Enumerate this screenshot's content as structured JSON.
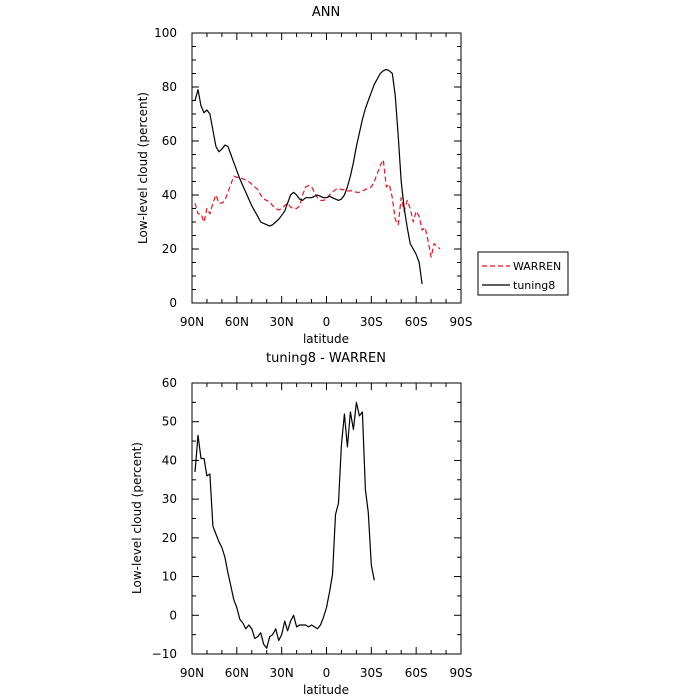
{
  "chart_data": [
    {
      "type": "line",
      "title": "ANN",
      "xlabel": "latitude",
      "ylabel": "Low-level cloud (percent)",
      "xlim": [
        90,
        -90
      ],
      "ylim": [
        0,
        100
      ],
      "xticks": [
        90,
        60,
        30,
        0,
        -30,
        -60,
        -90
      ],
      "xtick_labels": [
        "90N",
        "60N",
        "30N",
        "0",
        "30S",
        "60S",
        "90S"
      ],
      "yticks": [
        0,
        20,
        40,
        60,
        80,
        100
      ],
      "ytick_labels": [
        "0",
        "20",
        "40",
        "60",
        "80",
        "100"
      ],
      "legend": "right",
      "series": [
        {
          "name": "WARREN",
          "color": "#e8141e",
          "dash": "dashed",
          "points": [
            [
              88,
              37
            ],
            [
              86,
              33
            ],
            [
              84,
              33
            ],
            [
              82,
              30
            ],
            [
              80,
              35
            ],
            [
              78,
              33
            ],
            [
              76,
              37
            ],
            [
              74,
              40
            ],
            [
              72,
              37
            ],
            [
              70,
              37
            ],
            [
              68,
              38
            ],
            [
              66,
              41
            ],
            [
              64,
              44
            ],
            [
              62,
              47
            ],
            [
              60,
              46.5
            ],
            [
              58,
              46.5
            ],
            [
              56,
              46
            ],
            [
              54,
              45.5
            ],
            [
              52,
              45
            ],
            [
              50,
              44
            ],
            [
              48,
              43
            ],
            [
              46,
              42
            ],
            [
              44,
              40
            ],
            [
              42,
              38.5
            ],
            [
              40,
              38
            ],
            [
              38,
              37.5
            ],
            [
              36,
              36
            ],
            [
              34,
              35
            ],
            [
              32,
              34.5
            ],
            [
              30,
              35
            ],
            [
              28,
              36
            ],
            [
              26,
              37
            ],
            [
              24,
              35.5
            ],
            [
              22,
              35
            ],
            [
              20,
              35
            ],
            [
              18,
              36
            ],
            [
              16,
              40
            ],
            [
              14,
              43
            ],
            [
              12,
              43.5
            ],
            [
              10,
              43
            ],
            [
              8,
              41
            ],
            [
              6,
              39
            ],
            [
              4,
              38
            ],
            [
              2,
              38
            ],
            [
              0,
              38.5
            ],
            [
              -2,
              40
            ],
            [
              -4,
              41
            ],
            [
              -6,
              42
            ],
            [
              -8,
              42.5
            ],
            [
              -10,
              42
            ],
            [
              -12,
              42
            ],
            [
              -14,
              41.5
            ],
            [
              -16,
              41.5
            ],
            [
              -18,
              41.5
            ],
            [
              -20,
              41
            ],
            [
              -22,
              41
            ],
            [
              -24,
              41.5
            ],
            [
              -26,
              42
            ],
            [
              -28,
              42.5
            ],
            [
              -30,
              43
            ],
            [
              -32,
              45
            ],
            [
              -34,
              48
            ],
            [
              -36,
              51
            ],
            [
              -38,
              53
            ],
            [
              -40,
              43
            ],
            [
              -42,
              44
            ],
            [
              -44,
              39
            ],
            [
              -46,
              31
            ],
            [
              -48,
              29
            ],
            [
              -50,
              39
            ],
            [
              -52,
              34
            ],
            [
              -54,
              38
            ],
            [
              -56,
              35
            ],
            [
              -58,
              30
            ],
            [
              -60,
              34
            ],
            [
              -62,
              32
            ],
            [
              -64,
              27
            ],
            [
              -66,
              28
            ],
            [
              -68,
              23
            ],
            [
              -70,
              17
            ],
            [
              -72,
              22
            ],
            [
              -74,
              21
            ],
            [
              -76,
              20
            ]
          ]
        },
        {
          "name": "tuning8",
          "color": "#000000",
          "dash": "solid",
          "points": [
            [
              88,
              75
            ],
            [
              86,
              79
            ],
            [
              84,
              73
            ],
            [
              82,
              70.5
            ],
            [
              80,
              71.5
            ],
            [
              78,
              70
            ],
            [
              76,
              64
            ],
            [
              74,
              58
            ],
            [
              72,
              56
            ],
            [
              70,
              57
            ],
            [
              68,
              58.5
            ],
            [
              66,
              58
            ],
            [
              64,
              55
            ],
            [
              62,
              52
            ],
            [
              60,
              49
            ],
            [
              58,
              46
            ],
            [
              56,
              43.5
            ],
            [
              54,
              41
            ],
            [
              52,
              38.5
            ],
            [
              50,
              36
            ],
            [
              48,
              34
            ],
            [
              46,
              32
            ],
            [
              44,
              30
            ],
            [
              42,
              29.5
            ],
            [
              40,
              29
            ],
            [
              38,
              28.5
            ],
            [
              36,
              29
            ],
            [
              34,
              30
            ],
            [
              32,
              31
            ],
            [
              30,
              32.5
            ],
            [
              28,
              34
            ],
            [
              26,
              37
            ],
            [
              24,
              40
            ],
            [
              22,
              41
            ],
            [
              20,
              40
            ],
            [
              18,
              38.5
            ],
            [
              16,
              38
            ],
            [
              14,
              39
            ],
            [
              12,
              39
            ],
            [
              10,
              39
            ],
            [
              8,
              39.5
            ],
            [
              6,
              40
            ],
            [
              4,
              39.5
            ],
            [
              2,
              39
            ],
            [
              0,
              39
            ],
            [
              -2,
              39.5
            ],
            [
              -4,
              39
            ],
            [
              -6,
              38.5
            ],
            [
              -8,
              38
            ],
            [
              -10,
              38.5
            ],
            [
              -12,
              40
            ],
            [
              -14,
              43
            ],
            [
              -16,
              47
            ],
            [
              -18,
              52
            ],
            [
              -20,
              58
            ],
            [
              -22,
              63
            ],
            [
              -24,
              68
            ],
            [
              -26,
              72
            ],
            [
              -28,
              75
            ],
            [
              -30,
              78
            ],
            [
              -32,
              81
            ],
            [
              -34,
              83
            ],
            [
              -36,
              85
            ],
            [
              -38,
              86
            ],
            [
              -40,
              86.5
            ],
            [
              -42,
              86
            ],
            [
              -44,
              85
            ],
            [
              -46,
              77
            ],
            [
              -48,
              62
            ],
            [
              -50,
              45
            ],
            [
              -52,
              35
            ],
            [
              -54,
              28
            ],
            [
              -56,
              22
            ],
            [
              -58,
              20
            ],
            [
              -60,
              18
            ],
            [
              -62,
              15
            ],
            [
              -64,
              7
            ]
          ]
        }
      ]
    },
    {
      "type": "line",
      "title": "tuning8 - WARREN",
      "xlabel": "latitude",
      "ylabel": "Low-level cloud (percent)",
      "xlim": [
        90,
        -90
      ],
      "ylim": [
        -10,
        60
      ],
      "xticks": [
        90,
        60,
        30,
        0,
        -30,
        -60,
        -90
      ],
      "xtick_labels": [
        "90N",
        "60N",
        "30N",
        "0",
        "30S",
        "60S",
        "90S"
      ],
      "yticks": [
        -10,
        0,
        10,
        20,
        30,
        40,
        50,
        60
      ],
      "ytick_labels": [
        "−10",
        "0",
        "10",
        "20",
        "30",
        "40",
        "50",
        "60"
      ],
      "series": [
        {
          "color": "#000000",
          "dash": "solid",
          "points": [
            [
              88,
              37
            ],
            [
              86,
              46.5
            ],
            [
              84,
              40.5
            ],
            [
              82,
              40.5
            ],
            [
              80,
              36
            ],
            [
              78,
              36.5
            ],
            [
              76,
              23
            ],
            [
              74,
              21
            ],
            [
              72,
              19
            ],
            [
              70,
              17.5
            ],
            [
              68,
              15
            ],
            [
              66,
              11
            ],
            [
              64,
              7.5
            ],
            [
              62,
              4
            ],
            [
              60,
              2
            ],
            [
              58,
              -1
            ],
            [
              56,
              -2
            ],
            [
              54,
              -3.5
            ],
            [
              52,
              -2.5
            ],
            [
              50,
              -3.5
            ],
            [
              48,
              -6
            ],
            [
              46,
              -5.5
            ],
            [
              44,
              -4.5
            ],
            [
              42,
              -7.5
            ],
            [
              40,
              -8.5
            ],
            [
              38,
              -5.5
            ],
            [
              36,
              -5
            ],
            [
              34,
              -3.5
            ],
            [
              32,
              -6.5
            ],
            [
              30,
              -5
            ],
            [
              28,
              -1.5
            ],
            [
              26,
              -4
            ],
            [
              24,
              -1.5
            ],
            [
              22,
              0
            ],
            [
              20,
              -3
            ],
            [
              18,
              -2.5
            ],
            [
              16,
              -2.5
            ],
            [
              14,
              -2.5
            ],
            [
              12,
              -3
            ],
            [
              10,
              -2.5
            ],
            [
              8,
              -3
            ],
            [
              6,
              -3.5
            ],
            [
              4,
              -2.5
            ],
            [
              2,
              -0.5
            ],
            [
              0,
              2
            ],
            [
              -2,
              6
            ],
            [
              -4,
              10.5
            ],
            [
              -6,
              26
            ],
            [
              -8,
              29
            ],
            [
              -10,
              44
            ],
            [
              -12,
              52
            ],
            [
              -14,
              43.5
            ],
            [
              -16,
              52.5
            ],
            [
              -18,
              48
            ],
            [
              -20,
              55
            ],
            [
              -22,
              51.5
            ],
            [
              -24,
              52.5
            ],
            [
              -26,
              32.5
            ],
            [
              -28,
              26.5
            ],
            [
              -30,
              13
            ],
            [
              -32,
              9
            ]
          ]
        }
      ]
    }
  ]
}
